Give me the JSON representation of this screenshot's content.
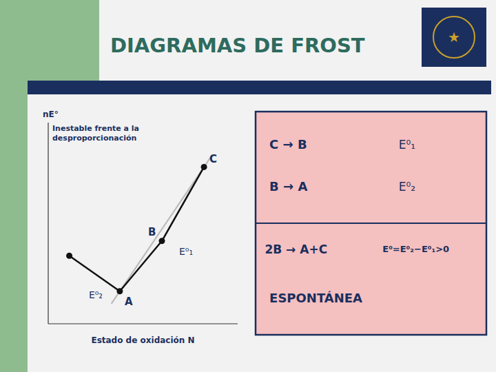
{
  "chart_data": {
    "type": "line",
    "title": "DIAGRAMAS DE FROST",
    "xlabel": "Estado de oxidación N",
    "ylabel": "nE°",
    "xlim": [
      0.3,
      4.8
    ],
    "ylim": [
      -0.3,
      6.5
    ],
    "tick_labels": false,
    "series": [
      {
        "color": "#bbbbbb",
        "x": [
          1.8,
          4.2
        ],
        "values": [
          0.38,
          5.42
        ]
      },
      {
        "color": "#111111",
        "marker": "circle",
        "x": [
          0.8,
          2.0,
          3.0,
          4.0
        ],
        "values": [
          2.0,
          0.8,
          2.5,
          5.0
        ]
      }
    ],
    "annotations": [
      {
        "text": "A",
        "x": 2.0,
        "y": 0.8
      },
      {
        "text": "B",
        "x": 3.0,
        "y": 2.5
      },
      {
        "text": "C",
        "x": 4.0,
        "y": 5.0
      },
      {
        "text": "E⁰₁",
        "x": 3.0,
        "y": 2.5
      },
      {
        "text": "E⁰₂",
        "x": 2.0,
        "y": 0.8
      },
      {
        "text": "Inestable frente a la\ndesproporcionación"
      },
      {
        "text": "C → B"
      },
      {
        "text": "E⁰₁"
      },
      {
        "text": "B → A"
      },
      {
        "text": "E⁰₂"
      },
      {
        "text": "2B → A+C"
      },
      {
        "text": "E⁰=E⁰₂−E⁰₁>0"
      },
      {
        "text": "ESPONTÁNEA"
      },
      {
        "text": "★"
      }
    ]
  }
}
